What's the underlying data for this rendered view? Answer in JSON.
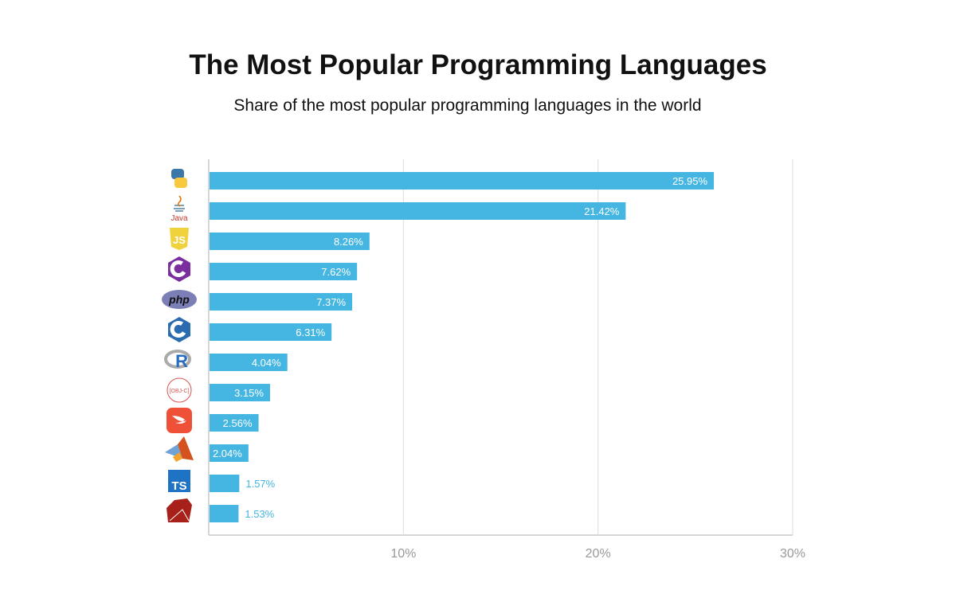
{
  "chart_data": {
    "type": "bar",
    "orientation": "horizontal",
    "title": "The Most Popular Programming Languages",
    "subtitle": "Share of the most popular programming languages in the world",
    "categories": [
      "Python",
      "Java",
      "JavaScript",
      "C#",
      "PHP",
      "C++",
      "R",
      "Objective-C",
      "Swift",
      "MATLAB",
      "TypeScript",
      "Ruby"
    ],
    "category_icons": [
      "python-icon",
      "java-icon",
      "javascript-icon",
      "csharp-icon",
      "php-icon",
      "cpp-icon",
      "r-icon",
      "objective-c-icon",
      "swift-icon",
      "matlab-icon",
      "typescript-icon",
      "ruby-icon"
    ],
    "values": [
      25.95,
      21.42,
      8.26,
      7.62,
      7.37,
      6.31,
      4.04,
      3.15,
      2.56,
      2.04,
      1.57,
      1.53
    ],
    "data_labels": [
      "25.95%",
      "21.42%",
      "8.26%",
      "7.62%",
      "7.37%",
      "6.31%",
      "4.04%",
      "3.15%",
      "2.56%",
      "2.04%",
      "1.57%",
      "1.53%"
    ],
    "xlim": [
      0,
      30
    ],
    "x_ticks": [
      10,
      20,
      30
    ],
    "x_tick_labels": [
      "10%",
      "20%",
      "30%"
    ],
    "grid": true,
    "legend": "none",
    "bar_color": "#45b5e2",
    "label_inside_color": "#ffffff",
    "label_outside_color": "#45b5e2"
  }
}
